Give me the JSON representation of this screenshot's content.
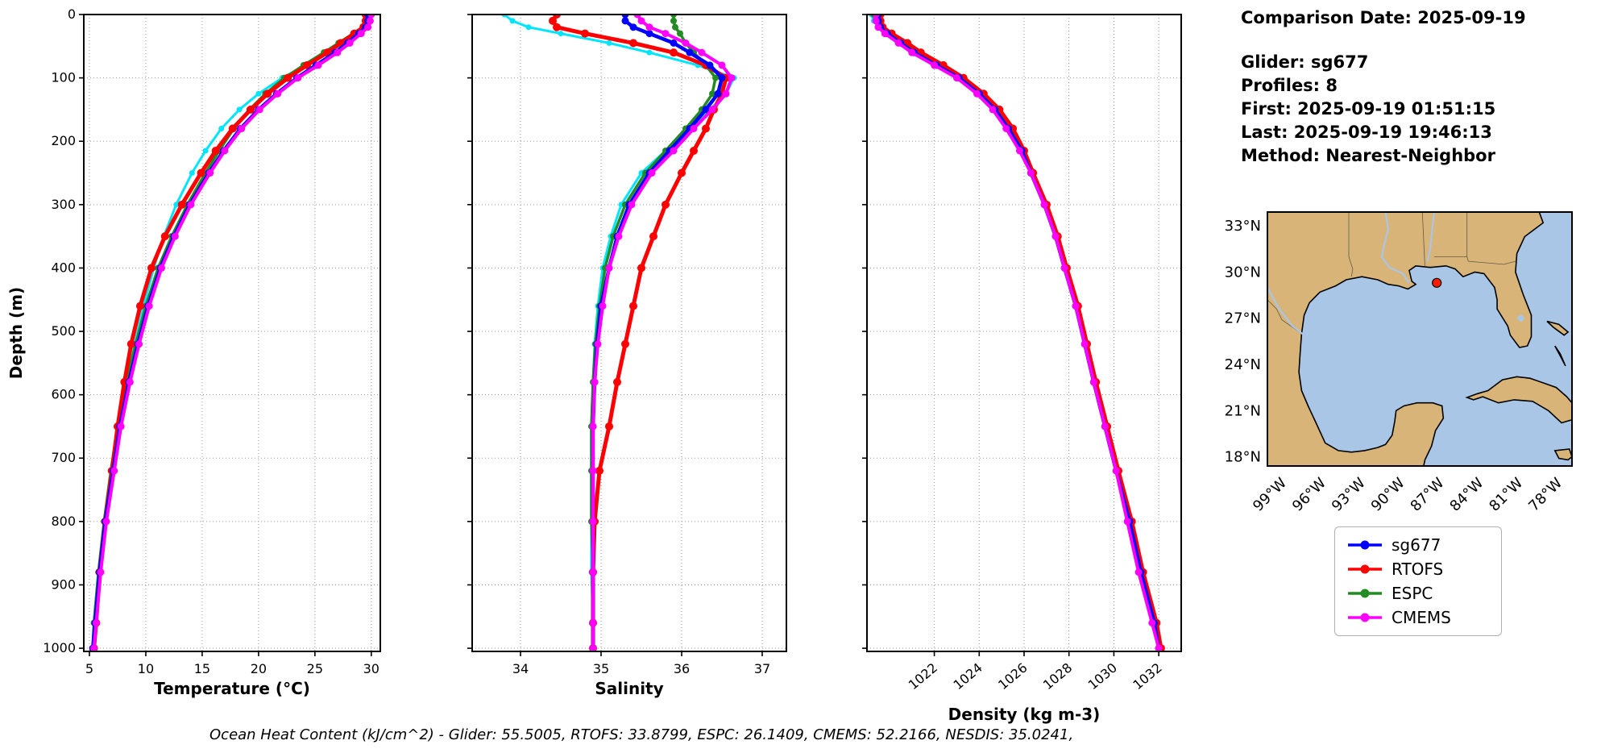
{
  "header": {
    "comparison_date": "Comparison Date: 2025-09-19",
    "glider": "Glider: sg677",
    "profiles": "Profiles: 8",
    "first": "First: 2025-09-19 01:51:15",
    "last": "Last: 2025-09-19 19:46:13",
    "method": "Method: Nearest-Neighbor"
  },
  "caption": "Ocean Heat Content (kJ/cm^2) - Glider: 55.5005,  RTOFS: 33.8799,  ESPC: 26.1409,  CMEMS: 52.2166,  NESDIS: 35.0241,",
  "legend": {
    "entries": [
      {
        "label": "sg677",
        "color": "#0000ff"
      },
      {
        "label": "RTOFS",
        "color": "#ff0000"
      },
      {
        "label": "ESPC",
        "color": "#228b22"
      },
      {
        "label": "CMEMS",
        "color": "#ff00ff"
      }
    ]
  },
  "map": {
    "land_color": "#d9b478",
    "water_color": "#a9c6e6",
    "coast_color": "#000000",
    "lat_tick_values": [
      33,
      30,
      27,
      24,
      21,
      18
    ],
    "lat_tick_labels": [
      "33°N",
      "30°N",
      "27°N",
      "24°N",
      "21°N",
      "18°N"
    ],
    "lon_tick_values": [
      -99,
      -96,
      -93,
      -90,
      -87,
      -84,
      -81,
      -78
    ],
    "lon_tick_labels": [
      "99°W",
      "96°W",
      "93°W",
      "90°W",
      "87°W",
      "84°W",
      "81°W",
      "78°W"
    ],
    "marker": {
      "lon": -87.3,
      "lat": 29.3,
      "color": "#ff1a00"
    }
  },
  "chart_data": [
    {
      "type": "line",
      "xlabel": "Temperature (°C)",
      "ylabel": "Depth (m)",
      "xlim": [
        4.5,
        30.8
      ],
      "ylim": [
        0,
        1005
      ],
      "xticks": [
        5,
        10,
        15,
        20,
        25,
        30
      ],
      "yticks": [
        0,
        100,
        200,
        300,
        400,
        500,
        600,
        700,
        800,
        900,
        1000
      ],
      "grid": true,
      "depths": [
        0,
        10,
        20,
        30,
        45,
        60,
        80,
        100,
        125,
        150,
        180,
        215,
        250,
        300,
        350,
        400,
        460,
        520,
        580,
        650,
        720,
        800,
        880,
        960,
        1000
      ],
      "series": [
        {
          "name": "NESDIS",
          "color": "#00e5ff",
          "line_width": 3,
          "marker_size": 3.5,
          "in_legend": false,
          "values": [
            29.6,
            29.6,
            29.4,
            28.6,
            27.5,
            26.3,
            24.2,
            22.1,
            20.0,
            18.3,
            16.7,
            15.3,
            14.1,
            12.7,
            11.6,
            10.7,
            9.8,
            9.0,
            8.3,
            7.6,
            7.0,
            6.4,
            5.9,
            5.5,
            5.3
          ]
        },
        {
          "name": "ESPC",
          "color": "#228b22",
          "line_width": 3.5,
          "marker_size": 4,
          "in_legend": true,
          "values": [
            29.9,
            29.8,
            29.4,
            28.4,
            27.1,
            25.8,
            24.0,
            22.3,
            20.6,
            19.2,
            17.8,
            16.5,
            15.3,
            13.7,
            12.3,
            11.1,
            10.0,
            9.1,
            8.3,
            7.5,
            6.9,
            6.3,
            5.8,
            5.4,
            5.3
          ]
        },
        {
          "name": "RTOFS",
          "color": "#ff0000",
          "line_width": 5,
          "marker_size": 5,
          "in_legend": true,
          "values": [
            29.5,
            29.5,
            29.3,
            28.5,
            27.3,
            26.1,
            24.3,
            22.6,
            20.8,
            19.3,
            17.7,
            16.2,
            14.9,
            13.2,
            11.7,
            10.5,
            9.5,
            8.7,
            8.1,
            7.5,
            7.0,
            6.4,
            5.9,
            5.6,
            5.4
          ]
        },
        {
          "name": "sg677",
          "color": "#0000ff",
          "line_width": 4.5,
          "marker_size": 4.5,
          "in_legend": true,
          "values": [
            29.7,
            29.7,
            29.5,
            28.9,
            27.9,
            26.8,
            25.1,
            23.4,
            21.6,
            20.0,
            18.4,
            16.9,
            15.6,
            13.9,
            12.5,
            11.3,
            10.2,
            9.3,
            8.5,
            7.7,
            7.1,
            6.4,
            5.9,
            5.5,
            5.3
          ]
        },
        {
          "name": "CMEMS",
          "color": "#ff00ff",
          "line_width": 4,
          "marker_size": 4.5,
          "in_legend": true,
          "values": [
            30.0,
            29.9,
            29.7,
            29.1,
            28.1,
            27.0,
            25.3,
            23.5,
            21.7,
            20.1,
            18.5,
            17.0,
            15.7,
            14.0,
            12.6,
            11.4,
            10.3,
            9.4,
            8.6,
            7.8,
            7.2,
            6.5,
            6.0,
            5.6,
            5.4
          ]
        }
      ]
    },
    {
      "type": "line",
      "xlabel": "Salinity",
      "ylabel": "Depth (m)",
      "xlim": [
        33.4,
        37.3
      ],
      "ylim": [
        0,
        1005
      ],
      "xticks": [
        34,
        35,
        36,
        37
      ],
      "yticks": [
        0,
        100,
        200,
        300,
        400,
        500,
        600,
        700,
        800,
        900,
        1000
      ],
      "grid": true,
      "depths": [
        0,
        10,
        20,
        30,
        45,
        60,
        80,
        100,
        125,
        150,
        180,
        215,
        250,
        300,
        350,
        400,
        460,
        520,
        580,
        650,
        720,
        800,
        880,
        960,
        1000
      ],
      "series": [
        {
          "name": "NESDIS",
          "color": "#00e5ff",
          "line_width": 3,
          "marker_size": 3.5,
          "in_legend": false,
          "values": [
            33.8,
            33.9,
            34.1,
            34.5,
            35.1,
            35.6,
            36.2,
            36.65,
            36.55,
            36.35,
            36.1,
            35.8,
            35.5,
            35.25,
            35.12,
            35.02,
            34.96,
            34.92,
            34.9,
            34.88,
            34.88,
            34.88,
            34.88,
            34.9,
            34.9
          ]
        },
        {
          "name": "ESPC",
          "color": "#228b22",
          "line_width": 3.5,
          "marker_size": 4,
          "in_legend": true,
          "values": [
            35.9,
            35.9,
            35.92,
            35.98,
            36.05,
            36.15,
            36.3,
            36.42,
            36.38,
            36.25,
            36.05,
            35.8,
            35.55,
            35.3,
            35.15,
            35.05,
            34.98,
            34.93,
            34.9,
            34.88,
            34.88,
            34.88,
            34.9,
            34.9,
            34.9
          ]
        },
        {
          "name": "RTOFS",
          "color": "#ff0000",
          "line_width": 5,
          "marker_size": 5,
          "in_legend": true,
          "values": [
            34.45,
            34.4,
            34.45,
            34.8,
            35.4,
            35.9,
            36.3,
            36.55,
            36.5,
            36.4,
            36.3,
            36.15,
            36.0,
            35.8,
            35.65,
            35.5,
            35.4,
            35.3,
            35.2,
            35.1,
            34.98,
            34.92,
            34.9,
            34.9,
            34.9
          ]
        },
        {
          "name": "sg677",
          "color": "#0000ff",
          "line_width": 4.5,
          "marker_size": 4.5,
          "in_legend": true,
          "values": [
            35.3,
            35.3,
            35.4,
            35.6,
            35.9,
            36.1,
            36.35,
            36.5,
            36.45,
            36.3,
            36.1,
            35.85,
            35.6,
            35.35,
            35.2,
            35.1,
            35.0,
            34.95,
            34.92,
            34.9,
            34.9,
            34.9,
            34.9,
            34.9,
            34.9
          ]
        },
        {
          "name": "CMEMS",
          "color": "#ff00ff",
          "line_width": 4,
          "marker_size": 4.5,
          "in_legend": true,
          "values": [
            35.45,
            35.5,
            35.6,
            35.8,
            36.05,
            36.25,
            36.5,
            36.62,
            36.55,
            36.38,
            36.15,
            35.9,
            35.63,
            35.38,
            35.22,
            35.1,
            35.02,
            34.96,
            34.92,
            34.9,
            34.9,
            34.9,
            34.9,
            34.9,
            34.9
          ]
        }
      ]
    },
    {
      "type": "line",
      "xlabel": "Density (kg m-3)",
      "ylabel": "Depth (m)",
      "xlim": [
        1019,
        1033
      ],
      "ylim": [
        0,
        1005
      ],
      "xticks": [
        1022,
        1024,
        1026,
        1028,
        1030,
        1032
      ],
      "yticks": [
        0,
        100,
        200,
        300,
        400,
        500,
        600,
        700,
        800,
        900,
        1000
      ],
      "grid": true,
      "rotated_xtick_labels": true,
      "depths": [
        0,
        10,
        20,
        30,
        45,
        60,
        80,
        100,
        125,
        150,
        180,
        215,
        250,
        300,
        350,
        400,
        460,
        520,
        580,
        650,
        720,
        800,
        880,
        960,
        1000
      ],
      "series": [
        {
          "name": "NESDIS",
          "color": "#00e5ff",
          "line_width": 3,
          "marker_size": 3.5,
          "in_legend": false,
          "values": [
            1019.2,
            1019.3,
            1019.5,
            1019.9,
            1020.6,
            1021.2,
            1022.3,
            1023.3,
            1024.2,
            1024.9,
            1025.5,
            1026.0,
            1026.4,
            1027.0,
            1027.4,
            1027.8,
            1028.3,
            1028.7,
            1029.1,
            1029.6,
            1030.1,
            1030.6,
            1031.1,
            1031.7,
            1032.0
          ]
        },
        {
          "name": "ESPC",
          "color": "#228b22",
          "line_width": 3.5,
          "marker_size": 4,
          "in_legend": true,
          "values": [
            1019.3,
            1019.4,
            1019.6,
            1020.0,
            1020.7,
            1021.3,
            1022.3,
            1023.2,
            1024.1,
            1024.8,
            1025.4,
            1025.9,
            1026.4,
            1026.9,
            1027.4,
            1027.9,
            1028.3,
            1028.7,
            1029.1,
            1029.6,
            1030.1,
            1030.7,
            1031.2,
            1031.8,
            1032.1
          ]
        },
        {
          "name": "RTOFS",
          "color": "#ff0000",
          "line_width": 5,
          "marker_size": 5,
          "in_legend": true,
          "values": [
            1019.6,
            1019.6,
            1019.7,
            1020.1,
            1020.8,
            1021.4,
            1022.4,
            1023.3,
            1024.2,
            1024.9,
            1025.5,
            1026.0,
            1026.4,
            1027.0,
            1027.5,
            1027.9,
            1028.4,
            1028.8,
            1029.2,
            1029.7,
            1030.2,
            1030.8,
            1031.3,
            1031.9,
            1032.1
          ]
        },
        {
          "name": "sg677",
          "color": "#0000ff",
          "line_width": 4.5,
          "marker_size": 4.5,
          "in_legend": true,
          "values": [
            1019.5,
            1019.5,
            1019.6,
            1019.9,
            1020.5,
            1021.1,
            1022.1,
            1023.1,
            1024.0,
            1024.7,
            1025.3,
            1025.9,
            1026.3,
            1026.9,
            1027.4,
            1027.8,
            1028.3,
            1028.7,
            1029.1,
            1029.6,
            1030.1,
            1030.7,
            1031.2,
            1031.8,
            1032.0
          ]
        },
        {
          "name": "CMEMS",
          "color": "#ff00ff",
          "line_width": 4,
          "marker_size": 4.5,
          "in_legend": true,
          "values": [
            1019.4,
            1019.4,
            1019.5,
            1019.8,
            1020.4,
            1021.0,
            1022.0,
            1023.0,
            1023.9,
            1024.6,
            1025.2,
            1025.8,
            1026.3,
            1026.9,
            1027.4,
            1027.8,
            1028.3,
            1028.7,
            1029.1,
            1029.6,
            1030.1,
            1030.6,
            1031.1,
            1031.7,
            1032.0
          ]
        }
      ]
    }
  ]
}
